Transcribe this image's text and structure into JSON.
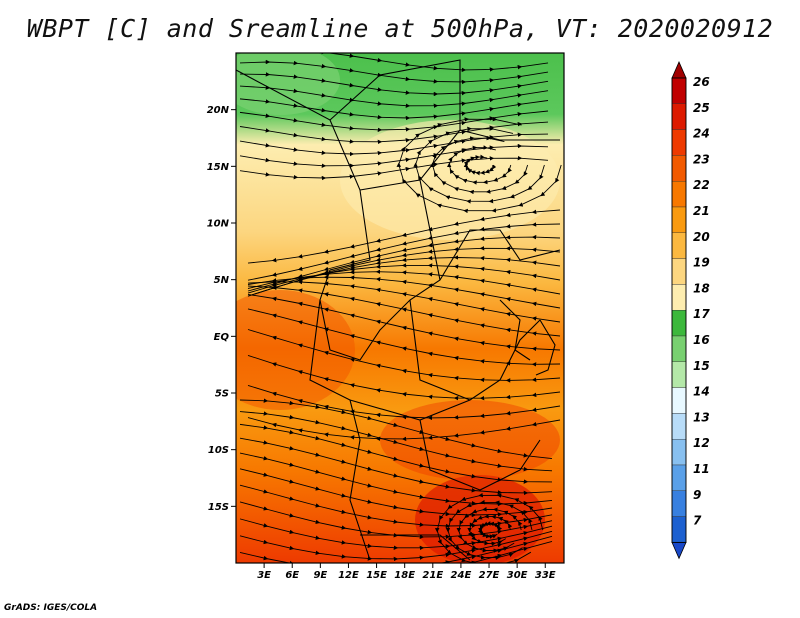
{
  "title": "WBPT [C] and Sreamline at 500hPa, VT: 2020020912",
  "credit": "GrADS: IGES/COLA",
  "map": {
    "lat_ticks": [
      {
        "label": "20N",
        "value": 20
      },
      {
        "label": "15N",
        "value": 15
      },
      {
        "label": "10N",
        "value": 10
      },
      {
        "label": "5N",
        "value": 5
      },
      {
        "label": "EQ",
        "value": 0
      },
      {
        "label": "5S",
        "value": -5
      },
      {
        "label": "10S",
        "value": -10
      },
      {
        "label": "15S",
        "value": -15
      }
    ],
    "lon_ticks": [
      {
        "label": "3E",
        "value": 3
      },
      {
        "label": "6E",
        "value": 6
      },
      {
        "label": "9E",
        "value": 9
      },
      {
        "label": "12E",
        "value": 12
      },
      {
        "label": "15E",
        "value": 15
      },
      {
        "label": "18E",
        "value": 18
      },
      {
        "label": "21E",
        "value": 21
      },
      {
        "label": "24E",
        "value": 24
      },
      {
        "label": "27E",
        "value": 27
      },
      {
        "label": "30E",
        "value": 30
      },
      {
        "label": "33E",
        "value": 33
      }
    ],
    "lon_range": [
      0,
      35
    ],
    "lat_range": [
      -20,
      25
    ]
  },
  "colorbar": {
    "labels": [
      "26",
      "25",
      "24",
      "23",
      "22",
      "21",
      "20",
      "19",
      "18",
      "17",
      "16",
      "15",
      "14",
      "13",
      "12",
      "11",
      "9",
      "7"
    ],
    "colors": [
      "#c00000",
      "#dd1a00",
      "#ee3a00",
      "#f25a00",
      "#f77800",
      "#f99a10",
      "#fbb840",
      "#fcd680",
      "#fdedb0",
      "#3cb83c",
      "#78d070",
      "#b4e8a8",
      "#e8f8ff",
      "#b8dcf8",
      "#88c0f0",
      "#5aa0e8",
      "#3880e0",
      "#1c60d0"
    ],
    "top_cap_color": "#a00000",
    "bottom_cap_color": "#1848c8"
  }
}
